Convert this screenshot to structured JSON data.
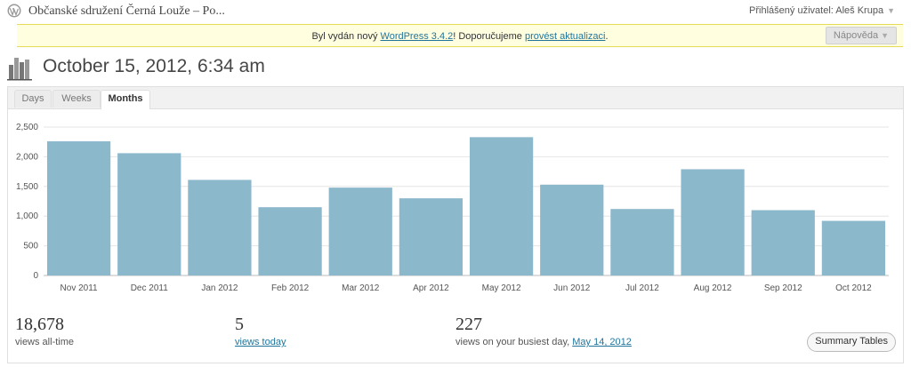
{
  "topbar": {
    "site_title": "Občanské sdružení Černá Louže – Po...",
    "user_label": "Přihlášený uživatel: Aleš Krupa",
    "caret": "▼"
  },
  "notice": {
    "text_before": "Byl vydán nový ",
    "link1": "WordPress 3.4.2",
    "text_middle": "! Doporučujeme ",
    "link2": "provést aktualizaci",
    "text_after": ".",
    "help_label": "Nápověda",
    "help_caret": "▼"
  },
  "page": {
    "title": "October 15, 2012, 6:34 am"
  },
  "tabs": [
    {
      "label": "Days",
      "active": false
    },
    {
      "label": "Weeks",
      "active": false
    },
    {
      "label": "Months",
      "active": true
    }
  ],
  "chart_data": {
    "type": "bar",
    "categories": [
      "Nov 2011",
      "Dec 2011",
      "Jan 2012",
      "Feb 2012",
      "Mar 2012",
      "Apr 2012",
      "May 2012",
      "Jun 2012",
      "Jul 2012",
      "Aug 2012",
      "Sep 2012",
      "Oct 2012"
    ],
    "values": [
      2260,
      2060,
      1610,
      1150,
      1480,
      1300,
      2330,
      1530,
      1120,
      1790,
      1100,
      920
    ],
    "ylim": [
      0,
      2500
    ],
    "yticks": [
      "0",
      "500",
      "1,000",
      "1,500",
      "2,000",
      "2,500"
    ],
    "ytick_values": [
      0,
      500,
      1000,
      1500,
      2000,
      2500
    ],
    "grid": true,
    "bar_color": "#8cb8cc"
  },
  "stats": {
    "alltime_value": "18,678",
    "alltime_label": "views all-time",
    "today_value": "5",
    "today_label": "views today",
    "busiest_value": "227",
    "busiest_label": "views on your busiest day, ",
    "busiest_date": "May 14, 2012"
  },
  "summary_button": "Summary Tables"
}
